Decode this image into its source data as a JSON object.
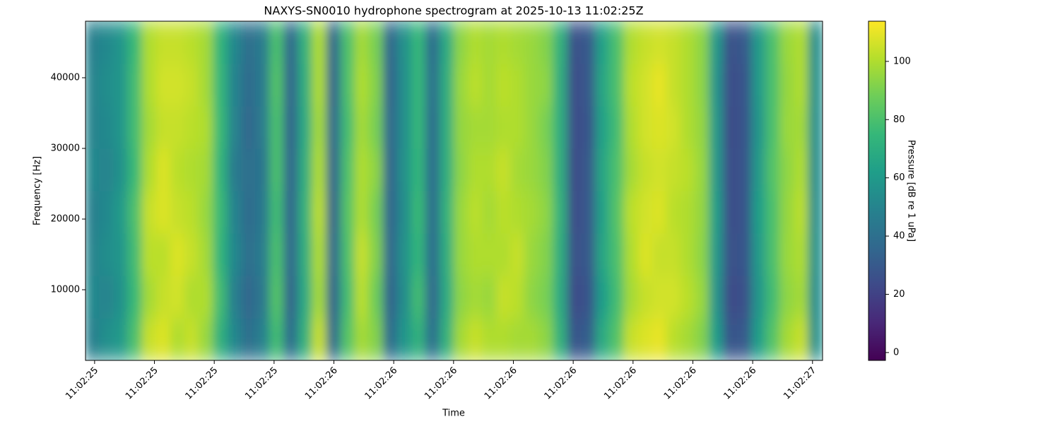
{
  "chart_data": {
    "type": "heatmap",
    "title": "NAXYS-SN0010 hydrophone spectrogram at 2025-10-13 11:02:25Z",
    "x_label": "Time",
    "y_label": "Frequency [Hz]",
    "colorbar_label": "Pressure [dB re 1 uPa]",
    "colormap": "viridis",
    "xlim": [
      25.481,
      27.021
    ],
    "ylim": [
      0,
      48000
    ],
    "clim": [
      -2.7,
      113.8
    ],
    "xticks": [
      {
        "value": 25.5,
        "label": "11:02:25"
      },
      {
        "value": 25.625,
        "label": "11:02:25"
      },
      {
        "value": 25.75,
        "label": "11:02:25"
      },
      {
        "value": 25.875,
        "label": "11:02:25"
      },
      {
        "value": 26.0,
        "label": "11:02:26"
      },
      {
        "value": 26.125,
        "label": "11:02:26"
      },
      {
        "value": 26.25,
        "label": "11:02:26"
      },
      {
        "value": 26.375,
        "label": "11:02:26"
      },
      {
        "value": 26.5,
        "label": "11:02:26"
      },
      {
        "value": 26.625,
        "label": "11:02:26"
      },
      {
        "value": 26.75,
        "label": "11:02:26"
      },
      {
        "value": 26.875,
        "label": "11:02:26"
      },
      {
        "value": 27.0,
        "label": "11:02:27"
      }
    ],
    "yticks": [
      10000,
      20000,
      30000,
      40000
    ],
    "cticks": [
      0,
      20,
      40,
      60,
      80,
      100
    ],
    "values": [
      [
        48,
        55,
        60,
        80,
        104,
        108,
        100,
        104,
        96,
        72,
        52,
        40,
        48,
        78,
        38,
        72,
        104,
        38,
        82,
        98,
        92,
        38,
        58,
        72,
        40,
        72,
        98,
        104,
        100,
        100,
        98,
        98,
        94,
        72,
        28,
        32,
        68,
        82,
        104,
        108,
        110,
        102,
        98,
        92,
        62,
        28,
        30,
        62,
        82,
        98,
        104,
        56
      ],
      [
        52,
        50,
        56,
        76,
        98,
        104,
        106,
        100,
        100,
        78,
        48,
        36,
        44,
        82,
        34,
        68,
        98,
        34,
        78,
        102,
        88,
        34,
        54,
        78,
        36,
        68,
        94,
        98,
        96,
        104,
        102,
        94,
        90,
        68,
        24,
        28,
        62,
        78,
        98,
        104,
        106,
        106,
        102,
        96,
        58,
        24,
        26,
        58,
        78,
        94,
        98,
        54
      ],
      [
        50,
        54,
        58,
        78,
        102,
        102,
        108,
        104,
        98,
        74,
        52,
        40,
        46,
        80,
        36,
        70,
        100,
        36,
        80,
        104,
        92,
        36,
        56,
        74,
        38,
        70,
        96,
        100,
        100,
        100,
        104,
        96,
        92,
        70,
        26,
        30,
        66,
        80,
        100,
        108,
        104,
        104,
        100,
        94,
        60,
        26,
        28,
        60,
        80,
        96,
        100,
        56
      ],
      [
        48,
        52,
        60,
        80,
        104,
        108,
        104,
        102,
        96,
        76,
        50,
        38,
        44,
        78,
        35,
        72,
        102,
        34,
        82,
        100,
        90,
        35,
        54,
        76,
        38,
        72,
        96,
        102,
        98,
        102,
        100,
        98,
        94,
        72,
        25,
        30,
        64,
        82,
        102,
        106,
        108,
        102,
        100,
        95,
        62,
        25,
        28,
        62,
        80,
        95,
        102,
        55
      ],
      [
        52,
        50,
        56,
        76,
        100,
        108,
        102,
        100,
        98,
        74,
        46,
        40,
        42,
        80,
        35,
        70,
        100,
        35,
        80,
        100,
        94,
        35,
        56,
        74,
        38,
        70,
        94,
        100,
        100,
        104,
        98,
        96,
        92,
        70,
        24,
        30,
        66,
        80,
        98,
        104,
        106,
        104,
        102,
        96,
        60,
        25,
        28,
        60,
        82,
        94,
        100,
        54
      ],
      [
        50,
        52,
        58,
        78,
        98,
        104,
        104,
        102,
        100,
        76,
        50,
        36,
        46,
        80,
        34,
        68,
        98,
        36,
        78,
        98,
        90,
        36,
        55,
        75,
        38,
        70,
        95,
        98,
        98,
        100,
        100,
        96,
        90,
        70,
        25,
        28,
        64,
        78,
        100,
        106,
        108,
        106,
        100,
        95,
        60,
        24,
        28,
        58,
        80,
        96,
        98,
        55
      ],
      [
        50,
        54,
        58,
        78,
        100,
        106,
        106,
        104,
        98,
        75,
        50,
        38,
        45,
        82,
        35,
        70,
        100,
        35,
        80,
        100,
        92,
        35,
        55,
        75,
        40,
        70,
        96,
        102,
        98,
        102,
        100,
        96,
        94,
        70,
        25,
        30,
        66,
        80,
        102,
        106,
        110,
        104,
        100,
        94,
        58,
        25,
        28,
        60,
        80,
        95,
        100,
        56
      ],
      [
        48,
        52,
        58,
        76,
        100,
        104,
        104,
        102,
        98,
        74,
        52,
        40,
        46,
        80,
        36,
        72,
        100,
        36,
        80,
        98,
        90,
        36,
        56,
        75,
        38,
        68,
        94,
        100,
        98,
        100,
        98,
        96,
        92,
        72,
        26,
        30,
        64,
        80,
        100,
        104,
        106,
        104,
        100,
        94,
        60,
        26,
        30,
        60,
        80,
        96,
        100,
        55
      ]
    ]
  }
}
